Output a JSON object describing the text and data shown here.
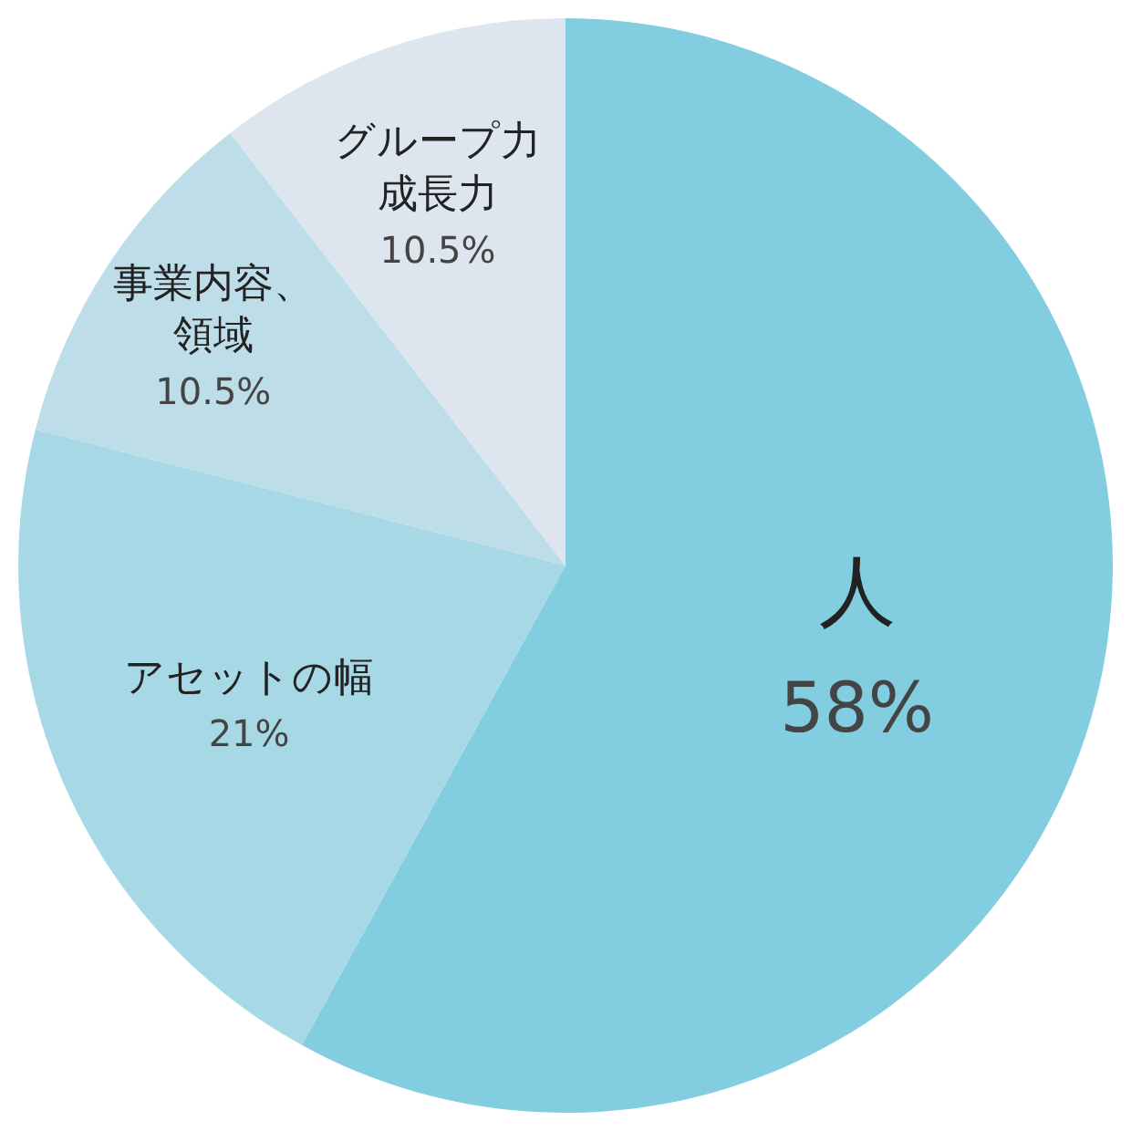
{
  "chart_data": {
    "type": "pie",
    "categories": [
      "人",
      "アセットの幅",
      "事業内容、領域",
      "グループ力成長力"
    ],
    "values": [
      58,
      21,
      10.5,
      10.5
    ],
    "colors": [
      "#82cde0",
      "#a6d8e6",
      "#bddde8",
      "#dde6ee"
    ],
    "value_labels": [
      "58%",
      "21%",
      "10.5%",
      "10.5%"
    ]
  }
}
